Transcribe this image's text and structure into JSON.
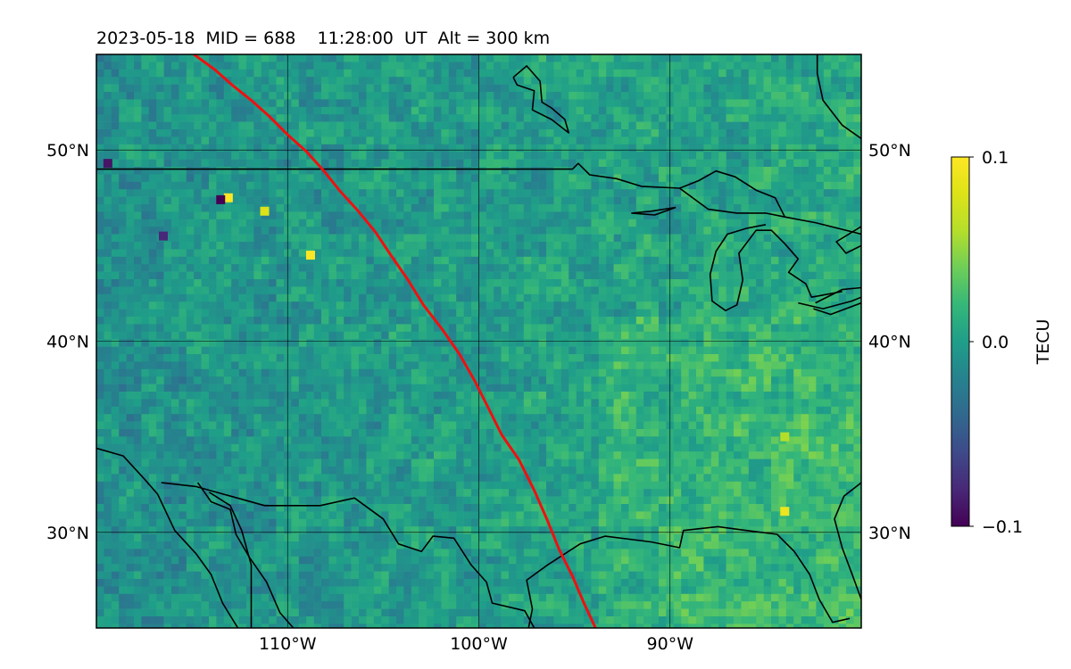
{
  "chart_data": {
    "type": "heatmap",
    "title": "2023-05-18  MID = 688    11:28:00  UT  Alt = 300 km",
    "map": {
      "lon_range": [
        -120,
        -80
      ],
      "lat_range": [
        25,
        55
      ],
      "gridlines": true,
      "lon_ticks": [
        -110,
        -100,
        -90
      ],
      "lon_tick_labels": [
        "110°W",
        "100°W",
        "90°W"
      ],
      "lat_ticks": [
        30,
        40,
        50
      ],
      "lat_tick_labels": [
        "30°N",
        "40°N",
        "50°N"
      ]
    },
    "colorbar": {
      "label": "TECU",
      "colormap": "viridis",
      "vmin": -0.1,
      "vmax": 0.1,
      "tick_values": [
        0.1,
        0.0,
        -0.1
      ],
      "tick_labels": [
        "0.1",
        "0.0",
        "−0.1"
      ]
    },
    "track": {
      "color": "#ee1111",
      "points": [
        [
          -114.9,
          55.0
        ],
        [
          -113.8,
          54.2
        ],
        [
          -112.9,
          53.4
        ],
        [
          -111.9,
          52.6
        ],
        [
          -111.0,
          51.8
        ],
        [
          -110.0,
          50.8
        ],
        [
          -109.0,
          49.9
        ],
        [
          -108.1,
          48.9
        ],
        [
          -107.3,
          47.9
        ],
        [
          -106.3,
          46.8
        ],
        [
          -105.4,
          45.7
        ],
        [
          -104.6,
          44.5
        ],
        [
          -103.7,
          43.2
        ],
        [
          -102.9,
          41.9
        ],
        [
          -101.9,
          40.6
        ],
        [
          -101.0,
          39.3
        ],
        [
          -100.2,
          37.9
        ],
        [
          -99.5,
          36.5
        ],
        [
          -98.8,
          35.1
        ],
        [
          -97.9,
          33.8
        ],
        [
          -97.1,
          32.2
        ],
        [
          -96.4,
          30.6
        ],
        [
          -95.8,
          29.1
        ],
        [
          -95.1,
          27.7
        ],
        [
          -94.5,
          26.3
        ],
        [
          -93.9,
          25.0
        ]
      ]
    },
    "field_features": [
      {
        "lon": -108.8,
        "lat": 44.5,
        "value": 0.1
      },
      {
        "lon": -113.1,
        "lat": 47.5,
        "value": 0.1
      },
      {
        "lon": -113.5,
        "lat": 47.4,
        "value": -0.1
      },
      {
        "lon": -119.4,
        "lat": 49.3,
        "value": -0.09
      },
      {
        "lon": -116.5,
        "lat": 45.5,
        "value": -0.08
      },
      {
        "lon": -111.2,
        "lat": 46.8,
        "value": 0.08
      },
      {
        "lon": -84.0,
        "lat": 31.1,
        "value": 0.09
      },
      {
        "lon": -84.0,
        "lat": 35.0,
        "value": 0.06
      }
    ],
    "coastlines": [
      [
        [
          -120,
          34.4
        ],
        [
          -118.6,
          34.0
        ],
        [
          -117.5,
          32.8
        ],
        [
          -116.8,
          32.0
        ],
        [
          -115.9,
          30.1
        ],
        [
          -114.8,
          28.9
        ],
        [
          -114.0,
          27.8
        ],
        [
          -113.4,
          26.3
        ],
        [
          -112.6,
          25.0
        ]
      ],
      [
        [
          -114.7,
          32.6
        ],
        [
          -114.0,
          31.6
        ],
        [
          -113.0,
          31.2
        ],
        [
          -112.7,
          29.9
        ],
        [
          -112.0,
          28.7
        ],
        [
          -111.1,
          27.4
        ],
        [
          -110.4,
          25.8
        ],
        [
          -109.7,
          25.0
        ]
      ],
      [
        [
          -114.1,
          32.1
        ],
        [
          -113.0,
          31.4
        ],
        [
          -112.4,
          30.1
        ],
        [
          -111.9,
          28.3
        ],
        [
          -111.9,
          25.0
        ]
      ],
      [
        [
          -116.6,
          32.6
        ],
        [
          -114.8,
          32.4
        ],
        [
          -111.2,
          31.4
        ],
        [
          -108.3,
          31.4
        ],
        [
          -106.5,
          31.8
        ],
        [
          -105.0,
          30.7
        ],
        [
          -104.2,
          29.4
        ],
        [
          -103.0,
          29.0
        ],
        [
          -102.4,
          29.8
        ],
        [
          -101.3,
          29.7
        ],
        [
          -100.4,
          28.3
        ],
        [
          -99.6,
          27.4
        ],
        [
          -99.3,
          26.3
        ],
        [
          -97.6,
          25.9
        ],
        [
          -97.1,
          25.0
        ]
      ],
      [
        [
          -97.4,
          25.0
        ],
        [
          -97.2,
          26.0
        ],
        [
          -97.5,
          27.5
        ],
        [
          -96.4,
          28.3
        ],
        [
          -94.7,
          29.4
        ],
        [
          -93.4,
          29.8
        ],
        [
          -91.0,
          29.5
        ],
        [
          -89.5,
          29.2
        ],
        [
          -89.3,
          30.1
        ],
        [
          -87.5,
          30.3
        ],
        [
          -86.0,
          30.1
        ],
        [
          -84.4,
          29.9
        ],
        [
          -83.5,
          29.0
        ],
        [
          -82.7,
          27.8
        ],
        [
          -82.2,
          26.5
        ],
        [
          -81.5,
          25.3
        ],
        [
          -80.6,
          25.5
        ]
      ],
      [
        [
          -80.0,
          32.6
        ],
        [
          -80.9,
          31.9
        ],
        [
          -81.4,
          30.7
        ],
        [
          -81.0,
          29.2
        ],
        [
          -80.4,
          27.6
        ],
        [
          -80.0,
          26.5
        ]
      ],
      [
        [
          -120,
          49.0
        ],
        [
          -95.1,
          49.0
        ],
        [
          -94.8,
          49.3
        ],
        [
          -94.2,
          48.7
        ],
        [
          -92.8,
          48.5
        ],
        [
          -91.5,
          48.1
        ],
        [
          -89.5,
          48.0
        ],
        [
          -88.5,
          48.4
        ],
        [
          -87.6,
          48.9
        ],
        [
          -86.6,
          48.6
        ],
        [
          -85.5,
          47.9
        ],
        [
          -84.5,
          47.5
        ],
        [
          -84.0,
          46.5
        ],
        [
          -82.4,
          46.2
        ],
        [
          -80.0,
          45.6
        ]
      ],
      [
        [
          -89.5,
          48.0
        ],
        [
          -88.0,
          46.9
        ],
        [
          -86.5,
          46.7
        ],
        [
          -85.0,
          46.7
        ],
        [
          -84.0,
          46.5
        ]
      ],
      [
        [
          -89.7,
          47.0
        ],
        [
          -91.0,
          46.8
        ],
        [
          -92.0,
          46.7
        ],
        [
          -90.8,
          46.6
        ],
        [
          -89.7,
          47.0
        ]
      ],
      [
        [
          -85.0,
          46.1
        ],
        [
          -86.0,
          45.9
        ],
        [
          -87.0,
          45.6
        ],
        [
          -87.6,
          44.7
        ],
        [
          -87.9,
          43.5
        ],
        [
          -87.8,
          42.1
        ],
        [
          -87.1,
          41.6
        ],
        [
          -86.5,
          41.9
        ],
        [
          -86.2,
          43.2
        ],
        [
          -86.4,
          44.6
        ],
        [
          -85.5,
          45.8
        ],
        [
          -84.7,
          45.8
        ],
        [
          -84.0,
          45.1
        ],
        [
          -83.3,
          44.3
        ],
        [
          -83.8,
          43.6
        ],
        [
          -82.9,
          43.0
        ],
        [
          -82.6,
          42.3
        ],
        [
          -81.0,
          42.6
        ]
      ],
      [
        [
          -83.3,
          42.0
        ],
        [
          -82.0,
          41.7
        ],
        [
          -80.5,
          42.1
        ],
        [
          -80.0,
          42.3
        ]
      ],
      [
        [
          -82.4,
          42.0
        ],
        [
          -81.0,
          42.7
        ],
        [
          -80.0,
          42.8
        ]
      ],
      [
        [
          -82.5,
          41.7
        ],
        [
          -81.6,
          41.4
        ],
        [
          -80.0,
          42.0
        ]
      ],
      [
        [
          -80.0,
          45.0
        ],
        [
          -80.8,
          44.6
        ],
        [
          -81.3,
          45.2
        ],
        [
          -80.0,
          46.0
        ]
      ],
      [
        [
          -80.0,
          50.6
        ],
        [
          -81.0,
          51.3
        ],
        [
          -82.0,
          52.6
        ],
        [
          -82.3,
          54.0
        ],
        [
          -82.3,
          55.0
        ]
      ],
      [
        [
          -98.2,
          53.8
        ],
        [
          -97.5,
          54.4
        ],
        [
          -96.8,
          53.6
        ],
        [
          -96.7,
          52.5
        ],
        [
          -96.2,
          52.2
        ],
        [
          -95.5,
          51.6
        ],
        [
          -95.3,
          50.9
        ],
        [
          -96.2,
          51.6
        ],
        [
          -97.2,
          52.1
        ],
        [
          -97.1,
          53.1
        ],
        [
          -98.0,
          53.4
        ],
        [
          -98.2,
          53.8
        ]
      ]
    ]
  }
}
